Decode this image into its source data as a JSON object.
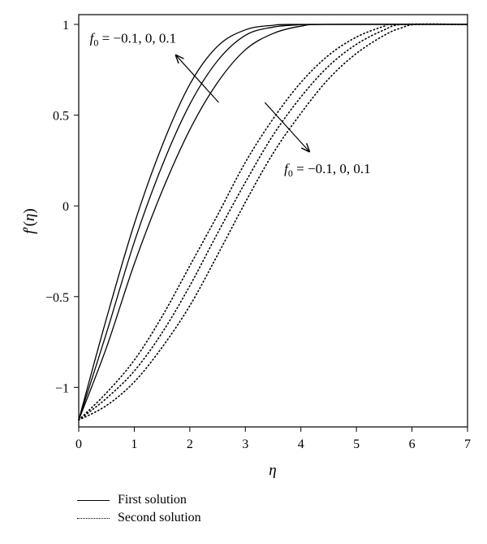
{
  "chart_data": {
    "type": "line",
    "xlabel": "η",
    "ylabel_parts": {
      "f": "f",
      "prime": "′",
      "open": "(",
      "eta": "η",
      "close": ")"
    },
    "xlim": [
      0,
      7
    ],
    "ylim": [
      -1.2,
      1.0
    ],
    "x_ticks": [
      0,
      1,
      2,
      3,
      4,
      5,
      6,
      7
    ],
    "y_ticks": [
      {
        "value": -1,
        "label": "−1"
      },
      {
        "value": -0.5,
        "label": "−0.5"
      },
      {
        "value": 0,
        "label": "0"
      },
      {
        "value": 0.5,
        "label": "0.5"
      },
      {
        "value": 1,
        "label": "1"
      }
    ],
    "grid": false,
    "legend_position": "below",
    "series": [
      {
        "group": "first",
        "style": "solid",
        "points": [
          [
            0,
            -1.18
          ],
          [
            0.5,
            -0.62
          ],
          [
            1,
            -0.1
          ],
          [
            1.5,
            0.33
          ],
          [
            2,
            0.67
          ],
          [
            2.5,
            0.88
          ],
          [
            3,
            0.97
          ],
          [
            3.5,
            0.995
          ],
          [
            4,
            1
          ],
          [
            7,
            1
          ]
        ]
      },
      {
        "group": "first",
        "style": "solid",
        "points": [
          [
            0,
            -1.18
          ],
          [
            0.5,
            -0.7
          ],
          [
            1,
            -0.2
          ],
          [
            1.5,
            0.22
          ],
          [
            2,
            0.56
          ],
          [
            2.5,
            0.8
          ],
          [
            3,
            0.94
          ],
          [
            3.5,
            0.985
          ],
          [
            4,
            0.998
          ],
          [
            4.5,
            1
          ],
          [
            7,
            1
          ]
        ]
      },
      {
        "group": "first",
        "style": "solid",
        "points": [
          [
            0,
            -1.18
          ],
          [
            0.5,
            -0.78
          ],
          [
            1,
            -0.32
          ],
          [
            1.5,
            0.08
          ],
          [
            2,
            0.42
          ],
          [
            2.5,
            0.68
          ],
          [
            3,
            0.86
          ],
          [
            3.5,
            0.95
          ],
          [
            4,
            0.99
          ],
          [
            4.5,
            1
          ],
          [
            7,
            1
          ]
        ]
      },
      {
        "group": "second",
        "style": "dotted",
        "points": [
          [
            0,
            -1.18
          ],
          [
            0.5,
            -1.03
          ],
          [
            1,
            -0.85
          ],
          [
            1.5,
            -0.61
          ],
          [
            2,
            -0.33
          ],
          [
            2.5,
            -0.05
          ],
          [
            3,
            0.24
          ],
          [
            3.5,
            0.48
          ],
          [
            4,
            0.68
          ],
          [
            4.5,
            0.83
          ],
          [
            5,
            0.93
          ],
          [
            5.5,
            0.99
          ],
          [
            5.7,
            1
          ],
          [
            7,
            1
          ]
        ]
      },
      {
        "group": "second",
        "style": "dotted",
        "points": [
          [
            0,
            -1.18
          ],
          [
            0.5,
            -1.06
          ],
          [
            1,
            -0.91
          ],
          [
            1.5,
            -0.7
          ],
          [
            2,
            -0.44
          ],
          [
            2.5,
            -0.15
          ],
          [
            3,
            0.13
          ],
          [
            3.5,
            0.39
          ],
          [
            4,
            0.6
          ],
          [
            4.5,
            0.77
          ],
          [
            5,
            0.89
          ],
          [
            5.5,
            0.97
          ],
          [
            5.85,
            1
          ],
          [
            7,
            1
          ]
        ]
      },
      {
        "group": "second",
        "style": "dotted",
        "points": [
          [
            0,
            -1.18
          ],
          [
            0.5,
            -1.1
          ],
          [
            1,
            -0.97
          ],
          [
            1.5,
            -0.78
          ],
          [
            2,
            -0.55
          ],
          [
            2.5,
            -0.27
          ],
          [
            3,
            0.02
          ],
          [
            3.5,
            0.29
          ],
          [
            4,
            0.51
          ],
          [
            4.5,
            0.7
          ],
          [
            5,
            0.84
          ],
          [
            5.5,
            0.94
          ],
          [
            5.8,
            0.98
          ],
          [
            6.1,
            1
          ],
          [
            7,
            1
          ]
        ]
      }
    ],
    "annotations": [
      {
        "f": "f",
        "sub": "0",
        "rest": " = −0.1, 0, 0.1",
        "x": 0.2,
        "y": 0.9,
        "arrow": {
          "from": [
            2.52,
            0.57
          ],
          "to": [
            1.75,
            0.83
          ]
        }
      },
      {
        "f": "f",
        "sub": "0",
        "rest": " = −0.1, 0, 0.1",
        "x": 3.7,
        "y": 0.18,
        "arrow": {
          "from": [
            3.35,
            0.57
          ],
          "to": [
            4.15,
            0.3
          ]
        }
      }
    ],
    "legend": [
      {
        "label": "First solution",
        "style": "solid"
      },
      {
        "label": "Second solution",
        "style": "dotted"
      }
    ]
  }
}
